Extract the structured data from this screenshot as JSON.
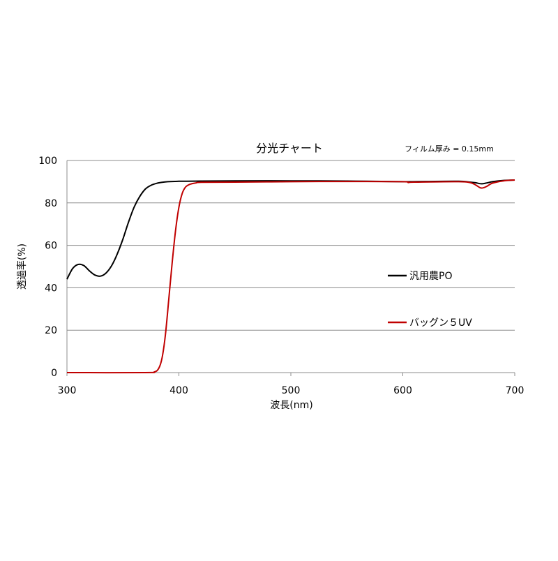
{
  "chart_data": {
    "type": "line",
    "title": "分光チャート",
    "annotation": "フィルム厚み = 0.15mm",
    "xlabel": "波長(nm)",
    "ylabel": "透過率(%)",
    "xlim": [
      300,
      700
    ],
    "ylim": [
      0,
      100
    ],
    "xticks": [
      300,
      400,
      500,
      600,
      700
    ],
    "yticks": [
      0,
      20,
      40,
      60,
      80,
      100
    ],
    "grid": "horizontal",
    "legend_position": "right",
    "series": [
      {
        "name": "汎用農PO",
        "color": "#000000",
        "points": [
          [
            300,
            44
          ],
          [
            305,
            49
          ],
          [
            310,
            51
          ],
          [
            315,
            50.5
          ],
          [
            320,
            48
          ],
          [
            325,
            46
          ],
          [
            330,
            45.5
          ],
          [
            335,
            47
          ],
          [
            340,
            50.5
          ],
          [
            345,
            56
          ],
          [
            350,
            63
          ],
          [
            355,
            71
          ],
          [
            360,
            78
          ],
          [
            365,
            83
          ],
          [
            370,
            86.5
          ],
          [
            375,
            88.3
          ],
          [
            380,
            89.2
          ],
          [
            385,
            89.7
          ],
          [
            390,
            90
          ],
          [
            400,
            90.2
          ],
          [
            420,
            90.3
          ],
          [
            450,
            90.4
          ],
          [
            500,
            90.4
          ],
          [
            550,
            90.3
          ],
          [
            600,
            90
          ],
          [
            620,
            90.1
          ],
          [
            650,
            90.2
          ],
          [
            660,
            89.8
          ],
          [
            665,
            89.5
          ],
          [
            670,
            89
          ],
          [
            675,
            89.4
          ],
          [
            680,
            90
          ],
          [
            690,
            90.6
          ],
          [
            700,
            90.8
          ]
        ]
      },
      {
        "name": "バッグン５UV",
        "color": "#c00000",
        "points": [
          [
            300,
            0
          ],
          [
            370,
            0
          ],
          [
            378,
            0.3
          ],
          [
            382,
            2
          ],
          [
            385,
            7
          ],
          [
            388,
            18
          ],
          [
            391,
            35
          ],
          [
            394,
            52
          ],
          [
            397,
            67
          ],
          [
            400,
            78
          ],
          [
            403,
            84.5
          ],
          [
            406,
            87.5
          ],
          [
            410,
            88.8
          ],
          [
            415,
            89.4
          ],
          [
            420,
            89.7
          ],
          [
            450,
            89.8
          ],
          [
            500,
            90
          ],
          [
            550,
            90.1
          ],
          [
            600,
            90
          ],
          [
            605,
            89.6
          ],
          [
            610,
            89.8
          ],
          [
            650,
            90
          ],
          [
            660,
            89.6
          ],
          [
            665,
            88.5
          ],
          [
            670,
            87
          ],
          [
            675,
            87.8
          ],
          [
            680,
            89.3
          ],
          [
            690,
            90.4
          ],
          [
            700,
            90.8
          ]
        ]
      }
    ]
  }
}
